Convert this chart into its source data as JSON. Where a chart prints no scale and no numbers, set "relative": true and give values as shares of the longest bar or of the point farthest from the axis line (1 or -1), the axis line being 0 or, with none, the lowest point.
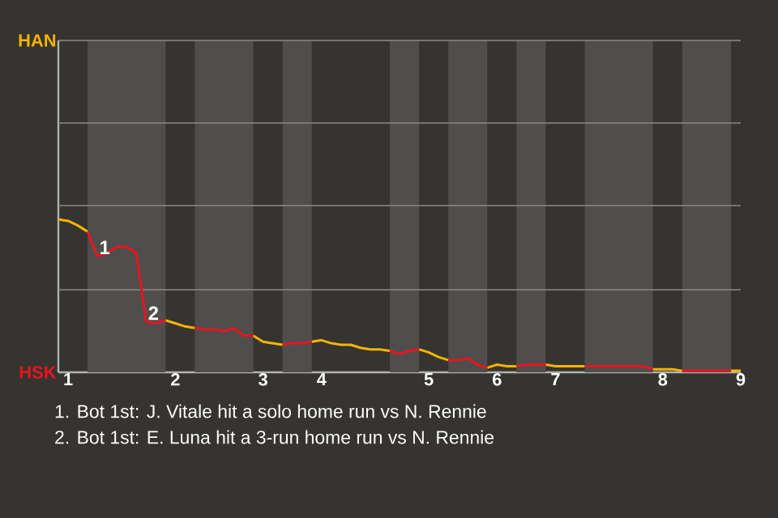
{
  "chart_data": {
    "type": "line",
    "relative": true,
    "categories": [
      null,
      "1",
      null,
      null,
      null,
      null,
      null,
      null,
      null,
      null,
      null,
      null,
      "2",
      null,
      null,
      null,
      null,
      null,
      null,
      null,
      null,
      "3",
      null,
      null,
      null,
      null,
      null,
      "4",
      null,
      null,
      null,
      null,
      null,
      null,
      null,
      null,
      null,
      null,
      "5",
      null,
      null,
      null,
      null,
      null,
      null,
      "6",
      null,
      null,
      null,
      null,
      null,
      "7",
      null,
      null,
      null,
      null,
      null,
      null,
      null,
      null,
      null,
      null,
      "8",
      null,
      null,
      null,
      null,
      null,
      null,
      null,
      "9"
    ],
    "marker": "none",
    "line_style": "solid",
    "ref_lines": [
      {
        "axis": "y",
        "value": 0.54,
        "color": "#8a8a8a"
      },
      {
        "axis": "y",
        "value": 1.09,
        "color": "#8a8a8a"
      },
      {
        "axis": "y",
        "value": 1.63,
        "color": "#8a8a8a"
      },
      {
        "axis": "y",
        "value": 2.17,
        "color": "#8a8a8a"
      }
    ],
    "series": [
      {
        "color": "#f5b400",
        "values": [
          1,
          0.99,
          0.96,
          0.92,
          null,
          null,
          null,
          null,
          null,
          null,
          null,
          0.34,
          0.32,
          0.3,
          0.29,
          null,
          null,
          null,
          null,
          null,
          0.24,
          0.2,
          0.19,
          0.18,
          null,
          null,
          0.2,
          0.21,
          0.19,
          0.18,
          0.18,
          0.16,
          0.15,
          0.15,
          0.14,
          null,
          null,
          0.15,
          0.13,
          0.1,
          0.08,
          null,
          null,
          null,
          0.03,
          0.05,
          0.04,
          0.04,
          null,
          null,
          0.05,
          0.04,
          0.04,
          0.04,
          0.04,
          null,
          null,
          null,
          null,
          null,
          null,
          0.02,
          0.02,
          0.02,
          0.01,
          null,
          null,
          null,
          null,
          0.01,
          0.01
        ]
      },
      {
        "color": "#e8141e",
        "values": [
          null,
          null,
          null,
          0.92,
          0.76,
          0.78,
          0.82,
          0.82,
          0.78,
          0.33,
          0.32,
          0.34,
          null,
          null,
          0.29,
          0.28,
          0.28,
          0.27,
          0.29,
          0.24,
          0.24,
          null,
          null,
          0.18,
          0.19,
          0.19,
          0.2,
          null,
          null,
          null,
          null,
          null,
          null,
          null,
          0.14,
          0.12,
          0.14,
          0.15,
          null,
          null,
          0.08,
          0.08,
          0.09,
          0.05,
          0.03,
          null,
          null,
          0.04,
          0.05,
          0.05,
          0.05,
          null,
          null,
          null,
          0.04,
          0.04,
          0.04,
          0.04,
          0.04,
          0.04,
          0.04,
          0.02,
          null,
          null,
          0.01,
          0.01,
          0.01,
          0.01,
          0.01,
          0.01,
          null
        ]
      }
    ],
    "annotations": [
      "HAN",
      "HSK",
      {
        "text": "1",
        "y": 0.76
      },
      {
        "text": "2",
        "y": 0.33
      },
      "1. Bot 1st: J. Vitale hit a solo home run vs N. Rennie",
      "2. Bot 1st: E. Luna hit a 3-run home run vs N. Rennie"
    ]
  }
}
